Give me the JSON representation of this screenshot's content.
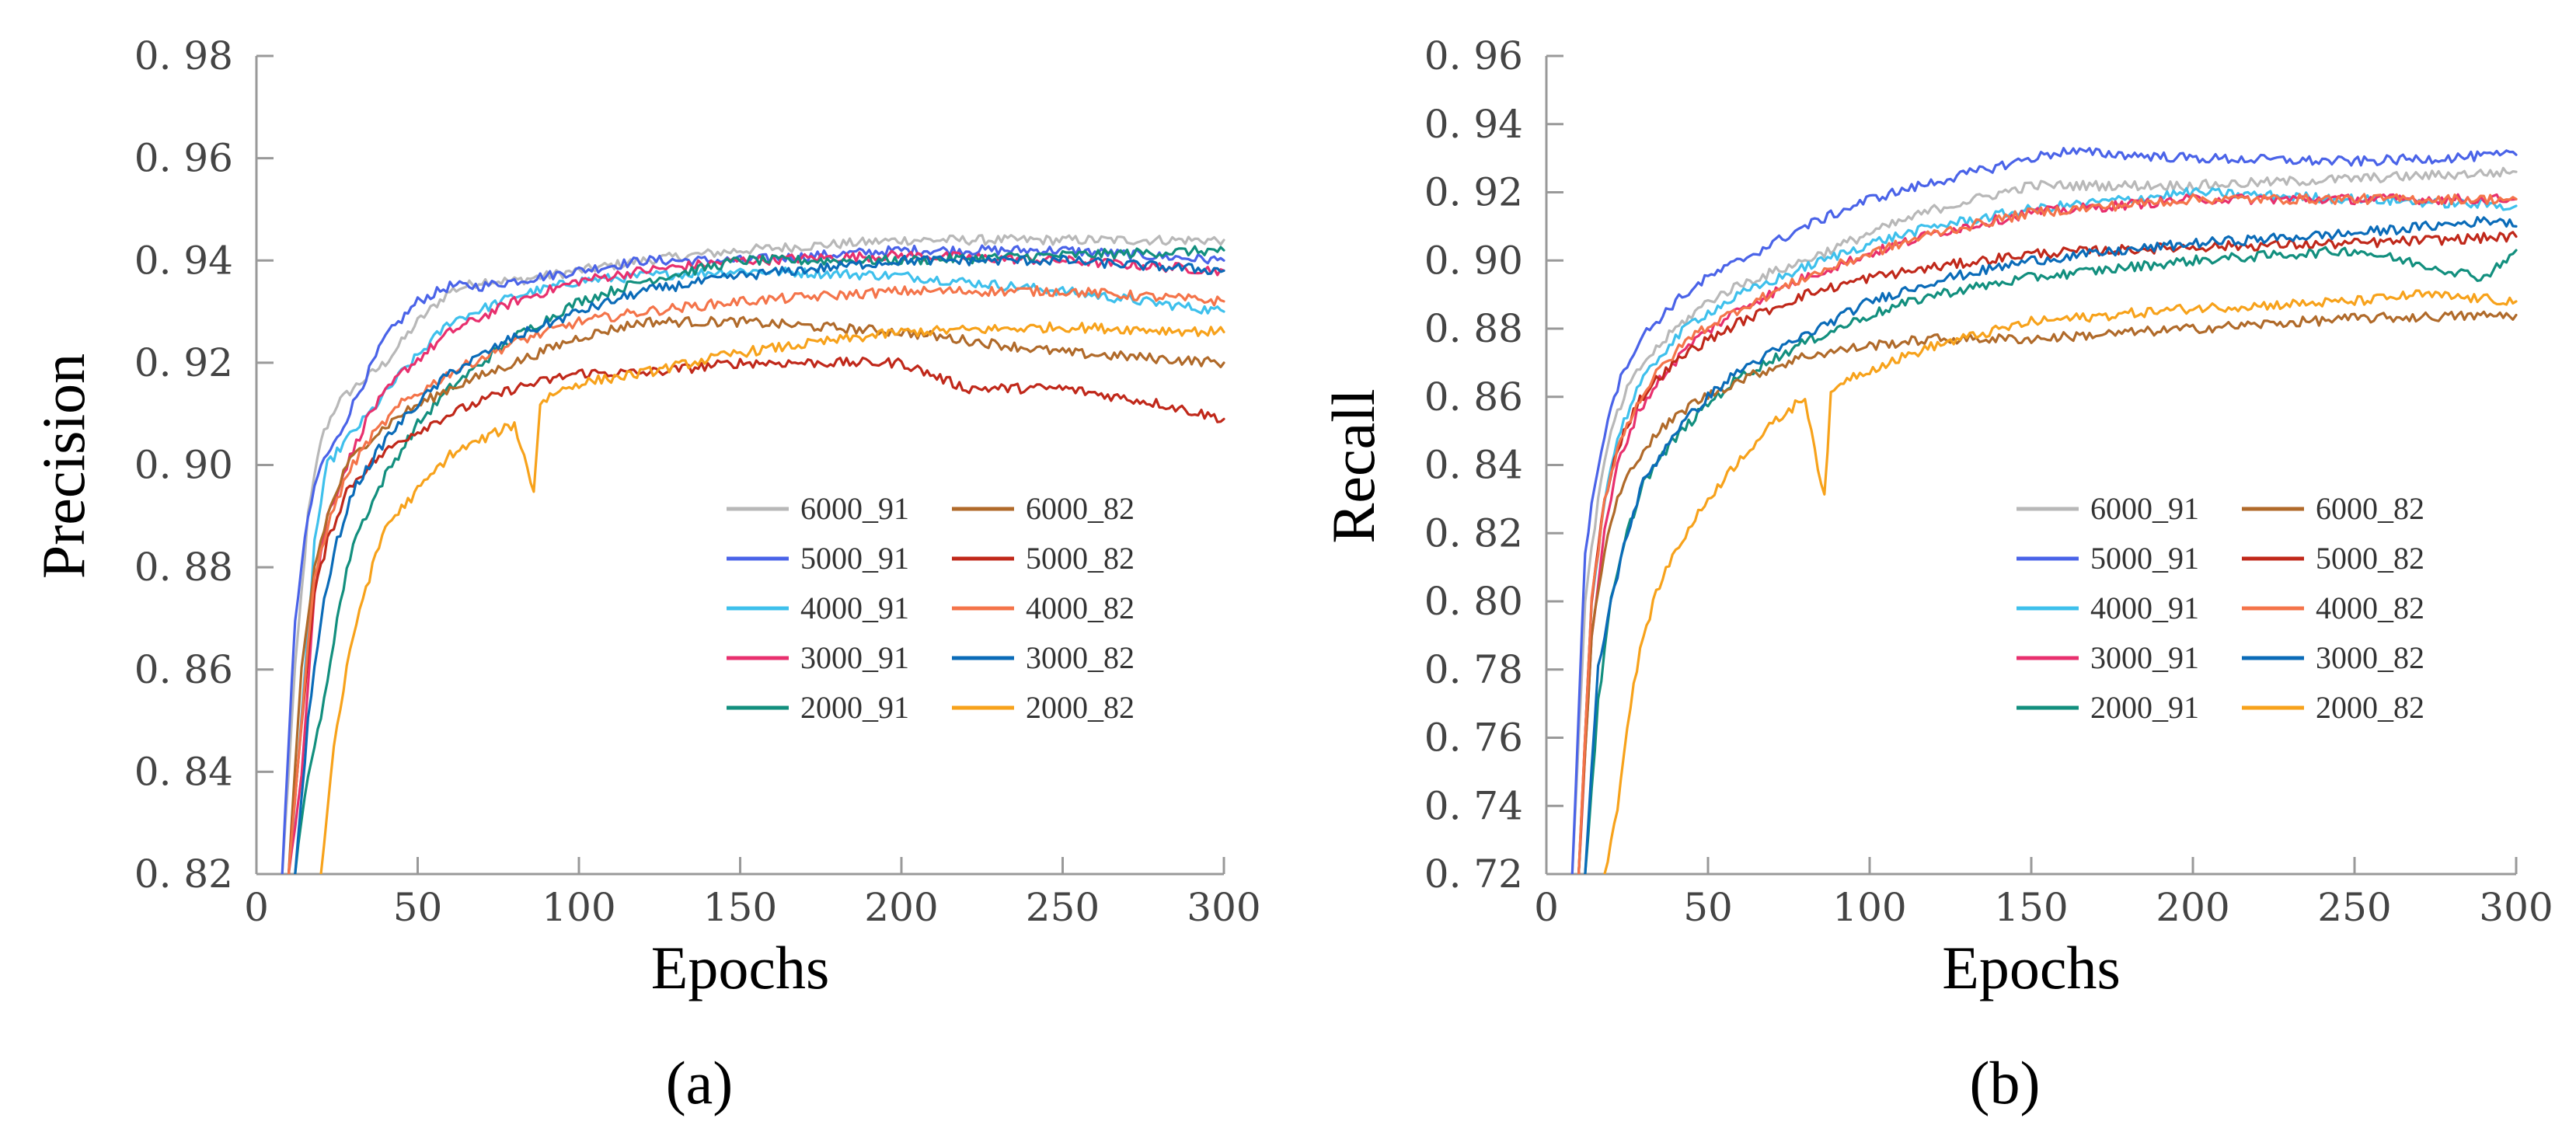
{
  "colors": {
    "6000_91": "#b8b8b8",
    "5000_91": "#4a63e8",
    "4000_91": "#3ec0ec",
    "3000_91": "#e8306e",
    "2000_91": "#128f7e",
    "6000_82": "#b06a2a",
    "5000_82": "#c0281a",
    "4000_82": "#f4744a",
    "3000_82": "#0a6bb8",
    "2000_82": "#f7a21b"
  },
  "chart_data": [
    {
      "type": "line",
      "panel_label": "(a)",
      "xlabel": "Epochs",
      "ylabel": "Precision",
      "xlim": [
        0,
        300
      ],
      "ylim": [
        0.82,
        0.98
      ],
      "xticks": [
        0,
        50,
        100,
        150,
        200,
        250,
        300
      ],
      "xtick_labels": [
        "0",
        "50",
        "100",
        "150",
        "200",
        "250",
        "300"
      ],
      "yticks": [
        0.82,
        0.84,
        0.86,
        0.88,
        0.9,
        0.92,
        0.94,
        0.96,
        0.98
      ],
      "ytick_labels": [
        "0. 82",
        "0. 84",
        "0. 86",
        "0. 88",
        "0. 90",
        "0. 92",
        "0. 94",
        "0. 96",
        "0. 98"
      ],
      "legend_location": "lower-right",
      "series": [
        {
          "name": "6000_91",
          "x": [
            8,
            12,
            16,
            20,
            25,
            30,
            40,
            50,
            60,
            70,
            80,
            100,
            120,
            150,
            200,
            250,
            300
          ],
          "values": [
            0.82,
            0.86,
            0.89,
            0.905,
            0.912,
            0.915,
            0.92,
            0.928,
            0.934,
            0.936,
            0.936,
            0.938,
            0.94,
            0.942,
            0.944,
            0.944,
            0.944
          ]
        },
        {
          "name": "5000_91",
          "x": [
            8,
            12,
            16,
            20,
            25,
            30,
            40,
            50,
            60,
            70,
            80,
            100,
            120,
            150,
            200,
            250,
            300
          ],
          "values": [
            0.82,
            0.87,
            0.89,
            0.9,
            0.905,
            0.912,
            0.925,
            0.932,
            0.935,
            0.935,
            0.936,
            0.938,
            0.94,
            0.94,
            0.942,
            0.942,
            0.94
          ]
        },
        {
          "name": "4000_91",
          "x": [
            10,
            14,
            18,
            22,
            28,
            35,
            45,
            60,
            80,
            100,
            120,
            150,
            200,
            250,
            300
          ],
          "values": [
            0.82,
            0.85,
            0.885,
            0.9,
            0.905,
            0.91,
            0.918,
            0.928,
            0.933,
            0.936,
            0.937,
            0.938,
            0.937,
            0.934,
            0.93
          ]
        },
        {
          "name": "3000_91",
          "x": [
            10,
            14,
            18,
            22,
            28,
            35,
            45,
            60,
            80,
            100,
            120,
            150,
            200,
            250,
            300
          ],
          "values": [
            0.82,
            0.84,
            0.875,
            0.89,
            0.9,
            0.91,
            0.918,
            0.926,
            0.932,
            0.936,
            0.938,
            0.94,
            0.941,
            0.94,
            0.938
          ]
        },
        {
          "name": "2000_91",
          "x": [
            12,
            16,
            20,
            25,
            30,
            40,
            50,
            60,
            80,
            100,
            120,
            150,
            200,
            250,
            300
          ],
          "values": [
            0.82,
            0.84,
            0.85,
            0.87,
            0.885,
            0.898,
            0.908,
            0.915,
            0.925,
            0.932,
            0.936,
            0.94,
            0.94,
            0.941,
            0.942
          ]
        },
        {
          "name": "6000_82",
          "x": [
            10,
            14,
            18,
            22,
            28,
            35,
            45,
            60,
            80,
            100,
            120,
            150,
            200,
            250,
            300
          ],
          "values": [
            0.82,
            0.86,
            0.88,
            0.89,
            0.9,
            0.905,
            0.91,
            0.915,
            0.92,
            0.925,
            0.928,
            0.928,
            0.926,
            0.922,
            0.92
          ]
        },
        {
          "name": "5000_82",
          "x": [
            10,
            14,
            18,
            22,
            28,
            35,
            45,
            60,
            80,
            100,
            120,
            150,
            200,
            220,
            250,
            280,
            300
          ],
          "values": [
            0.82,
            0.85,
            0.875,
            0.885,
            0.895,
            0.9,
            0.905,
            0.91,
            0.915,
            0.918,
            0.918,
            0.92,
            0.92,
            0.915,
            0.915,
            0.912,
            0.909
          ]
        },
        {
          "name": "4000_82",
          "x": [
            10,
            14,
            18,
            22,
            28,
            35,
            45,
            60,
            80,
            100,
            120,
            150,
            200,
            250,
            300
          ],
          "values": [
            0.82,
            0.85,
            0.878,
            0.888,
            0.898,
            0.905,
            0.912,
            0.918,
            0.924,
            0.928,
            0.93,
            0.932,
            0.934,
            0.934,
            0.932
          ]
        },
        {
          "name": "3000_82",
          "x": [
            12,
            16,
            20,
            25,
            30,
            40,
            50,
            60,
            80,
            100,
            120,
            150,
            200,
            250,
            300
          ],
          "values": [
            0.82,
            0.85,
            0.87,
            0.885,
            0.895,
            0.905,
            0.912,
            0.918,
            0.925,
            0.93,
            0.934,
            0.937,
            0.94,
            0.94,
            0.938
          ]
        },
        {
          "name": "2000_82",
          "x": [
            20,
            24,
            28,
            32,
            36,
            40,
            50,
            60,
            70,
            80,
            86,
            88,
            92,
            100,
            120,
            150,
            200,
            250,
            300
          ],
          "values": [
            0.82,
            0.845,
            0.86,
            0.872,
            0.88,
            0.888,
            0.895,
            0.902,
            0.905,
            0.908,
            0.895,
            0.912,
            0.914,
            0.916,
            0.918,
            0.922,
            0.926,
            0.927,
            0.926
          ]
        }
      ]
    },
    {
      "type": "line",
      "panel_label": "(b)",
      "xlabel": "Epochs",
      "ylabel": "Recall",
      "xlim": [
        0,
        300
      ],
      "ylim": [
        0.72,
        0.96
      ],
      "xticks": [
        0,
        50,
        100,
        150,
        200,
        250,
        300
      ],
      "xtick_labels": [
        "0",
        "50",
        "100",
        "150",
        "200",
        "250",
        "300"
      ],
      "yticks": [
        0.72,
        0.74,
        0.76,
        0.78,
        0.8,
        0.82,
        0.84,
        0.86,
        0.88,
        0.9,
        0.92,
        0.94,
        0.96
      ],
      "ytick_labels": [
        "0. 72",
        "0. 74",
        "0. 76",
        "0. 78",
        "0. 80",
        "0. 82",
        "0. 84",
        "0. 86",
        "0. 88",
        "0. 90",
        "0. 92",
        "0. 94",
        "0. 96"
      ],
      "legend_location": "lower-right",
      "series": [
        {
          "name": "6000_91",
          "x": [
            8,
            12,
            16,
            20,
            25,
            30,
            40,
            50,
            60,
            80,
            100,
            120,
            150,
            200,
            250,
            300
          ],
          "values": [
            0.72,
            0.8,
            0.83,
            0.85,
            0.862,
            0.87,
            0.88,
            0.888,
            0.893,
            0.9,
            0.908,
            0.915,
            0.922,
            0.922,
            0.924,
            0.926
          ]
        },
        {
          "name": "5000_91",
          "x": [
            8,
            12,
            16,
            20,
            25,
            30,
            40,
            50,
            60,
            80,
            100,
            120,
            150,
            160,
            200,
            250,
            300
          ],
          "values": [
            0.72,
            0.815,
            0.84,
            0.858,
            0.87,
            0.878,
            0.888,
            0.895,
            0.9,
            0.91,
            0.918,
            0.923,
            0.93,
            0.932,
            0.93,
            0.929,
            0.931
          ]
        },
        {
          "name": "4000_91",
          "x": [
            10,
            14,
            18,
            22,
            28,
            35,
            45,
            60,
            80,
            100,
            120,
            150,
            200,
            250,
            300
          ],
          "values": [
            0.72,
            0.8,
            0.83,
            0.848,
            0.862,
            0.872,
            0.882,
            0.89,
            0.898,
            0.905,
            0.91,
            0.915,
            0.92,
            0.918,
            0.916
          ]
        },
        {
          "name": "3000_91",
          "x": [
            10,
            14,
            18,
            22,
            28,
            35,
            45,
            60,
            80,
            100,
            120,
            150,
            200,
            250,
            300
          ],
          "values": [
            0.72,
            0.79,
            0.82,
            0.84,
            0.855,
            0.865,
            0.876,
            0.886,
            0.895,
            0.902,
            0.908,
            0.914,
            0.918,
            0.918,
            0.918
          ]
        },
        {
          "name": "2000_91",
          "x": [
            12,
            16,
            20,
            25,
            30,
            40,
            50,
            60,
            80,
            100,
            120,
            150,
            200,
            250,
            290,
            300
          ],
          "values": [
            0.72,
            0.77,
            0.8,
            0.82,
            0.835,
            0.848,
            0.858,
            0.866,
            0.876,
            0.884,
            0.89,
            0.895,
            0.9,
            0.903,
            0.895,
            0.903
          ]
        },
        {
          "name": "6000_82",
          "x": [
            10,
            14,
            18,
            22,
            28,
            35,
            45,
            60,
            80,
            100,
            120,
            150,
            200,
            250,
            300
          ],
          "values": [
            0.72,
            0.79,
            0.815,
            0.83,
            0.842,
            0.85,
            0.858,
            0.865,
            0.872,
            0.875,
            0.877,
            0.877,
            0.88,
            0.883,
            0.884
          ]
        },
        {
          "name": "5000_82",
          "x": [
            10,
            14,
            18,
            22,
            28,
            35,
            45,
            60,
            80,
            100,
            120,
            150,
            200,
            250,
            300
          ],
          "values": [
            0.72,
            0.8,
            0.83,
            0.845,
            0.858,
            0.866,
            0.874,
            0.882,
            0.89,
            0.895,
            0.898,
            0.902,
            0.904,
            0.905,
            0.907
          ]
        },
        {
          "name": "4000_82",
          "x": [
            10,
            14,
            18,
            22,
            28,
            35,
            45,
            60,
            80,
            100,
            120,
            150,
            200,
            250,
            300
          ],
          "values": [
            0.72,
            0.8,
            0.83,
            0.845,
            0.858,
            0.868,
            0.878,
            0.886,
            0.895,
            0.902,
            0.908,
            0.914,
            0.918,
            0.918,
            0.918
          ]
        },
        {
          "name": "3000_82",
          "x": [
            12,
            16,
            20,
            25,
            30,
            40,
            50,
            60,
            80,
            100,
            120,
            150,
            200,
            250,
            295,
            300
          ],
          "values": [
            0.72,
            0.78,
            0.8,
            0.82,
            0.835,
            0.85,
            0.86,
            0.868,
            0.878,
            0.888,
            0.894,
            0.9,
            0.905,
            0.908,
            0.912,
            0.91
          ]
        },
        {
          "name": "2000_82",
          "x": [
            18,
            22,
            26,
            30,
            35,
            40,
            50,
            60,
            70,
            80,
            86,
            88,
            92,
            100,
            120,
            150,
            200,
            250,
            270,
            300
          ],
          "values": [
            0.72,
            0.74,
            0.77,
            0.79,
            0.805,
            0.815,
            0.83,
            0.842,
            0.852,
            0.86,
            0.83,
            0.86,
            0.865,
            0.868,
            0.875,
            0.882,
            0.886,
            0.888,
            0.89,
            0.888
          ]
        }
      ]
    }
  ]
}
